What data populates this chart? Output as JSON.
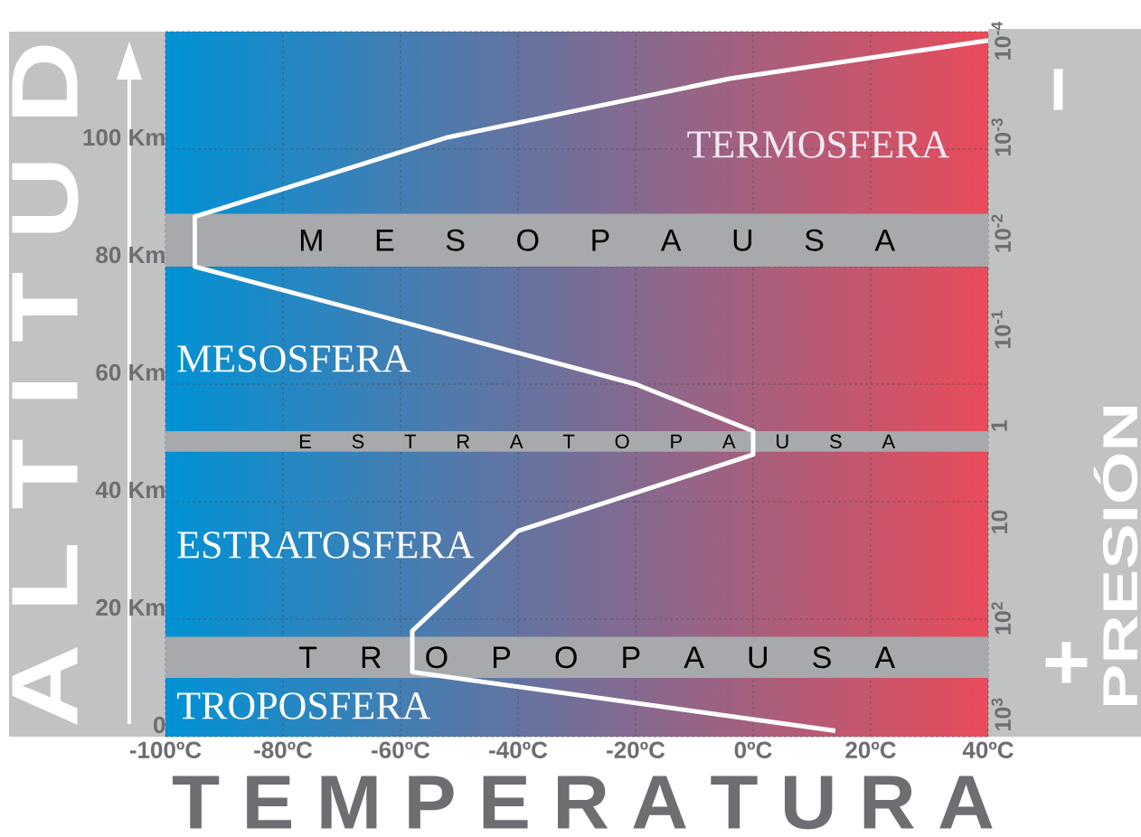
{
  "chart_data": {
    "type": "line",
    "xlabel": "T E M P E R A T U R A",
    "ylabel": "A L T I T U D",
    "y2label": "PRESIÓN",
    "xlim": [
      -100,
      40
    ],
    "ylim": [
      0,
      120
    ],
    "y2lim": [
      1700,
      8e-05
    ],
    "log": "y2",
    "xticks": [
      {
        "value": -100,
        "label": "-100ºC"
      },
      {
        "value": -80,
        "label": "-80ºC"
      },
      {
        "value": -60,
        "label": "-60ºC"
      },
      {
        "value": -40,
        "label": "-40ºC"
      },
      {
        "value": -20,
        "label": "-20ºC"
      },
      {
        "value": 0,
        "label": "0ºC"
      },
      {
        "value": 20,
        "label": "20ºC"
      },
      {
        "value": 40,
        "label": "40ºC"
      }
    ],
    "yticks": [
      0,
      {
        "value": 20,
        "label": "20 Km"
      },
      {
        "value": 40,
        "label": "40 Km"
      },
      {
        "value": 60,
        "label": "60 Km"
      },
      {
        "value": 80,
        "label": "80 Km"
      },
      {
        "value": 100,
        "label": "100 Km"
      },
      {
        "value": 120,
        "label": null
      }
    ],
    "y2ticks": [
      {
        "value": 1000,
        "label": "10$^{3}$"
      },
      {
        "value": 100,
        "label": "10$^{2}$"
      },
      10,
      1,
      {
        "value": 0.1,
        "label": "10$^{-1}$"
      },
      {
        "value": 0.01,
        "label": "10$^{-2}$"
      },
      {
        "value": 0.001,
        "label": "10$^{-3}$"
      },
      {
        "value": 0.0001,
        "label": "10$^{-4}$"
      }
    ],
    "grid": true,
    "series": [
      {
        "color": "#ffffff",
        "x": [
          14,
          -58,
          -58,
          -40,
          0,
          0,
          -20,
          -95,
          -95,
          -52,
          -4,
          40
        ],
        "values": [
          1,
          11,
          18,
          35,
          48,
          52,
          60,
          80,
          88.5,
          102,
          112,
          118.5
        ]
      }
    ],
    "bands": [
      {
        "axis": "y",
        "from": 10,
        "to": 17,
        "label": "T R O P O P A U S A",
        "color": "#a7a9ac"
      },
      {
        "axis": "y",
        "from": 48.5,
        "to": 52,
        "label": "E S T R A T O P A U S A",
        "color": "#a7a9ac"
      },
      {
        "axis": "y",
        "from": 80,
        "to": 89,
        "label": "M E S O P A U S A",
        "color": "#a7a9ac"
      }
    ],
    "annotations": [
      "TROPOSFERA",
      "ESTRATOSFERA",
      "MESOSFERA",
      "TERMOSFERA",
      "+",
      "−"
    ]
  }
}
